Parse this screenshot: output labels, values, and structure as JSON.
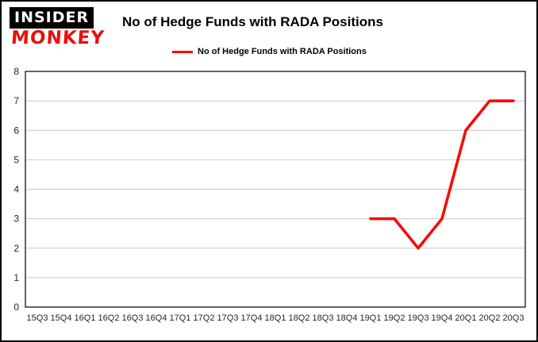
{
  "brand": {
    "line1": "INSIDER",
    "line2": "MONKEY"
  },
  "header": {
    "title": "No of Hedge Funds with RADA Positions"
  },
  "legend": {
    "label": "No of Hedge Funds with RADA Positions"
  },
  "colors": {
    "line": "#ff0000",
    "grid": "#c9c9c9",
    "axis": "#000000",
    "brand_red": "#e8100c"
  },
  "chart_data": {
    "type": "line",
    "title": "No of Hedge Funds with RADA Positions",
    "categories": [
      "15Q3",
      "15Q4",
      "16Q1",
      "16Q2",
      "16Q3",
      "16Q4",
      "17Q1",
      "17Q2",
      "17Q3",
      "17Q4",
      "18Q1",
      "18Q2",
      "18Q3",
      "18Q4",
      "19Q1",
      "19Q2",
      "19Q3",
      "19Q4",
      "20Q1",
      "20Q2",
      "20Q3"
    ],
    "values": [
      null,
      null,
      null,
      null,
      null,
      null,
      null,
      null,
      null,
      null,
      null,
      null,
      null,
      null,
      3,
      3,
      2,
      3,
      6,
      7,
      7
    ],
    "xlabel": "",
    "ylabel": "",
    "ylim": [
      0,
      8
    ],
    "yticks": [
      0,
      1,
      2,
      3,
      4,
      5,
      6,
      7,
      8
    ],
    "grid": true,
    "legend_position": "top",
    "series_name": "No of Hedge Funds with RADA Positions"
  }
}
